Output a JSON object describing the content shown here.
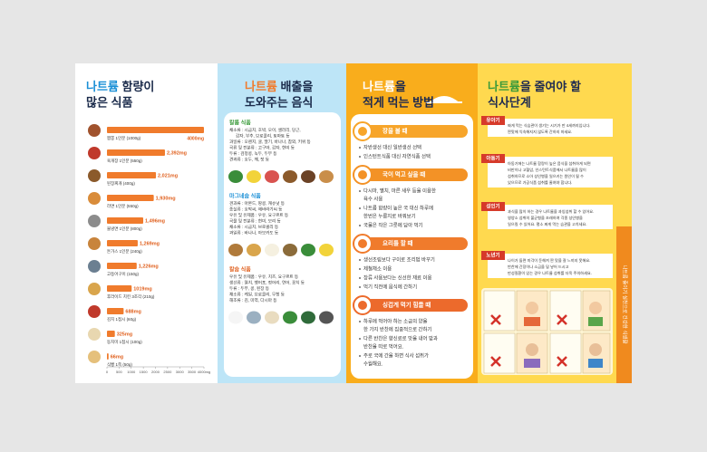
{
  "panel1": {
    "title_highlight": "나트륨",
    "title_rest": " 함량이",
    "title_line2": "많은 식품"
  },
  "chart_data": {
    "type": "bar",
    "orientation": "horizontal",
    "categories": [
      "짬뽕 1인분 (1000g)",
      "육개장 1인분 (550g)",
      "된장찌개 (400g)",
      "라면 1인분 (550g)",
      "물냉면 1인분 (800g)",
      "돈가스 1인분 (240g)",
      "고등어구이 (150g)",
      "후라이드 치킨 3조각 (210g)",
      "김치 1접시 (60g)",
      "동치미 1접시 (100g)",
      "식빵 1쪽 (50g)"
    ],
    "values": [
      4000,
      2392,
      2021,
      1930,
      1496,
      1269,
      1226,
      1019,
      688,
      325,
      66
    ],
    "value_labels": [
      "4000mg",
      "2,392mg",
      "2,021mg",
      "1,930mg",
      "1,496mg",
      "1,269mg",
      "1,226mg",
      "1019mg",
      "688mg",
      "325mg",
      "66mg"
    ],
    "color": "#f07b2c",
    "xlim": [
      0,
      4000
    ],
    "xticks": [
      0,
      500,
      1000,
      1500,
      2000,
      2500,
      3000,
      3500,
      {
        "value": 4000,
        "label": "4000mg"
      }
    ]
  },
  "panel2": {
    "title_highlight": "나트륨",
    "title_rest": " 배출을",
    "title_line2": "도와주는 음식",
    "sections": [
      {
        "name": "칼륨 식품",
        "items": [
          [
            "채소류 : 시금치, 호박, 오이, 샐러리, 당근,",
            "감자, 부추, 브로콜리, 토마토 등"
          ],
          [
            "과일류 : 오렌지, 귤, 딸기, 바나나, 참외, 키위 등"
          ],
          [
            "곡류 및 전분류 : 고구마, 감자, 현미 등"
          ],
          [
            "두류 : 검정콩, 녹두, 두부 등"
          ],
          [
            "견과류 : 호두, 깨, 잣 등"
          ]
        ]
      },
      {
        "name": "마그네슘 식품",
        "items": [
          [
            "견과류 : 아몬드, 땅콩, 캐슈넛 등"
          ],
          [
            "종실류 : 호박씨, 해바라기씨 등"
          ],
          [
            "우유 및 유제품 : 우유, 요구르트 등"
          ],
          [
            "곡물 및 전분류 : 현미, 보리 등"
          ],
          [
            "채소류 : 시금치, 브로콜리 등"
          ],
          [
            "과일류 : 바나나, 아보카도 등"
          ]
        ]
      },
      {
        "name": "칼슘 식품",
        "items": [
          [
            "우유 및 유제품 : 우유, 치즈, 요구르트 등"
          ],
          [
            "생선류 : 멸치, 뱅어포, 정어리, 연어, 꽁치 등"
          ],
          [
            "두류 : 두부, 콩, 된장 등"
          ],
          [
            "채소류 : 케일, 브로콜리, 무청 등"
          ],
          [
            "해조류 : 김, 미역, 다시마 등"
          ]
        ]
      }
    ]
  },
  "panel3": {
    "title_highlight": "나트륨",
    "title_rest": "을",
    "title_line2": "적게 먹는 방법",
    "sections": [
      {
        "name": "장을 볼 때",
        "items": [
          [
            "자반생선 대신 일반생선 선택"
          ],
          [
            "인스턴트식품 대신 자연식품 선택"
          ]
        ]
      },
      {
        "name": "국이 먹고 싶을 때",
        "items": [
          [
            "다시마, 멸치, 마른 새우 등을 이용한",
            "육수 사용"
          ],
          [
            "나트륨 함량이 높은 국 대신 하루에",
            "한번은 누룽지로 바꿔보기"
          ],
          [
            "국물은 작은 그릇에 담아 먹기"
          ]
        ]
      },
      {
        "name": "요리를 할 때",
        "items": [
          [
            "생선조림보다 구이로 조리법 바꾸기"
          ],
          [
            "제철채소 이용"
          ],
          [
            "장류 사용보다는 신선한 재료 이용"
          ],
          [
            "먹기 직전에 음식에 간하기"
          ]
        ]
      },
      {
        "name": "싱겁게 먹기 힘들 때",
        "items": [
          [
            "하루에 먹어야 하는 소금의 양을",
            "한 가지 반찬에 집중적으로 간하기"
          ],
          [
            "다른 반찬은 향신료로 맛을 내어 밥과",
            "반찬을 따로 먹어요."
          ],
          [
            "주로 국에 간을 하면 식사 섭취가",
            "수월해요."
          ]
        ]
      }
    ]
  },
  "panel4": {
    "title_highlight": "나트륨",
    "title_rest": "을 줄여야 할",
    "title_line2": "식사단계",
    "stages": [
      {
        "name": "유아기",
        "lines": [
          "짜게 먹는 식습관이 생기는 시기가 만 4세까지입니다.",
          "짠맛에 익숙해지지 않도록 간하지 마세요."
        ]
      },
      {
        "name": "아동기",
        "lines": [
          "아동기에는 나트륨 함량이 높은 음식을 섭취하게 되면",
          "비만이나 고혈압, 인스턴트식품에서 나트륨을 많이",
          "섭취하므로 소아 성인병을 일으키는 원인이 될 수",
          "있으므로 가공식품 섭취를 줄여야 합니다."
        ]
      },
      {
        "name": "성인기",
        "lines": [
          "과식을 많이 하는 경우 나트륨을 과잉섭취 할 수 있어요.",
          "영양소 섭취의 불균형을 초래하여 각종 성인병을",
          "일으킬 수 있어요. 평소 짜게 먹는 습관을 고치세요."
        ]
      },
      {
        "name": "노년기",
        "lines": [
          "나이가 들면 미각이 둔해져 짠 맛을 잘 느끼지 못해요.",
          "반찬에 간장이나 소금을 덜 넣어 드시고",
          "만성질환이 있는 경우 나트륨 섭취를 더욱 주의하세요."
        ]
      }
    ],
    "side_text": "나트륨 줄이기 실천으로 건강한 식생활"
  }
}
